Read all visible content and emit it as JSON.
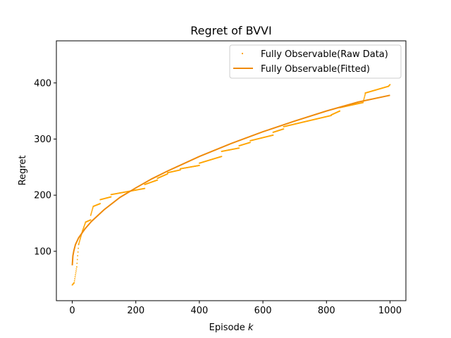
{
  "chart_data": {
    "type": "scatter",
    "title": "Regret of BVVI",
    "xlabel_text": "Episode ",
    "xlabel_var": "k",
    "ylabel": "Regret",
    "xlim": [
      -50,
      1050
    ],
    "ylim": [
      12,
      475
    ],
    "xticks": [
      0,
      200,
      400,
      600,
      800,
      1000
    ],
    "yticks": [
      100,
      200,
      300,
      400
    ],
    "grid": false,
    "legend_position": "top-right",
    "colors": {
      "raw": "#ffa500",
      "fitted": "#ef8a0a"
    },
    "series": [
      {
        "name": "Fully Observable(Raw Data)",
        "kind": "scatter",
        "segments": [
          {
            "x0": 0,
            "x1": 6,
            "y0": 40,
            "y1": 44
          },
          {
            "x0": 6,
            "x1": 14,
            "y0": 44,
            "y1": 72
          },
          {
            "x0": 14,
            "x1": 20,
            "y0": 72,
            "y1": 112
          },
          {
            "x0": 20,
            "x1": 32,
            "y0": 112,
            "y1": 136
          },
          {
            "x0": 32,
            "x1": 42,
            "y0": 136,
            "y1": 152
          },
          {
            "x0": 42,
            "x1": 58,
            "y0": 152,
            "y1": 156
          },
          {
            "x0": 58,
            "x1": 66,
            "y0": 164,
            "y1": 180
          },
          {
            "x0": 66,
            "x1": 88,
            "y0": 180,
            "y1": 185
          },
          {
            "x0": 88,
            "x1": 122,
            "y0": 192,
            "y1": 197
          },
          {
            "x0": 122,
            "x1": 228,
            "y0": 201,
            "y1": 212
          },
          {
            "x0": 228,
            "x1": 268,
            "y0": 219,
            "y1": 227
          },
          {
            "x0": 268,
            "x1": 300,
            "y0": 230,
            "y1": 238
          },
          {
            "x0": 300,
            "x1": 340,
            "y0": 240,
            "y1": 245
          },
          {
            "x0": 340,
            "x1": 400,
            "y0": 247,
            "y1": 253
          },
          {
            "x0": 400,
            "x1": 470,
            "y0": 257,
            "y1": 269
          },
          {
            "x0": 470,
            "x1": 525,
            "y0": 278,
            "y1": 284
          },
          {
            "x0": 525,
            "x1": 560,
            "y0": 288,
            "y1": 294
          },
          {
            "x0": 560,
            "x1": 632,
            "y0": 297,
            "y1": 307
          },
          {
            "x0": 632,
            "x1": 665,
            "y0": 312,
            "y1": 318
          },
          {
            "x0": 665,
            "x1": 815,
            "y0": 322,
            "y1": 342
          },
          {
            "x0": 815,
            "x1": 842,
            "y0": 343,
            "y1": 350
          },
          {
            "x0": 842,
            "x1": 915,
            "y0": 356,
            "y1": 365
          },
          {
            "x0": 915,
            "x1": 922,
            "y0": 365,
            "y1": 380
          },
          {
            "x0": 922,
            "x1": 995,
            "y0": 382,
            "y1": 394
          },
          {
            "x0": 995,
            "x1": 1000,
            "y0": 394,
            "y1": 397
          }
        ]
      },
      {
        "name": "Fully Observable(Fitted)",
        "kind": "line",
        "x": [
          0,
          2,
          5,
          10,
          20,
          40,
          60,
          100,
          150,
          200,
          250,
          300,
          400,
          500,
          600,
          700,
          800,
          900,
          1000
        ],
        "y": [
          75,
          92,
          101,
          112,
          124,
          140,
          153,
          174,
          196,
          213,
          229,
          243,
          269,
          292,
          313,
          332,
          350,
          366,
          378
        ]
      }
    ]
  }
}
